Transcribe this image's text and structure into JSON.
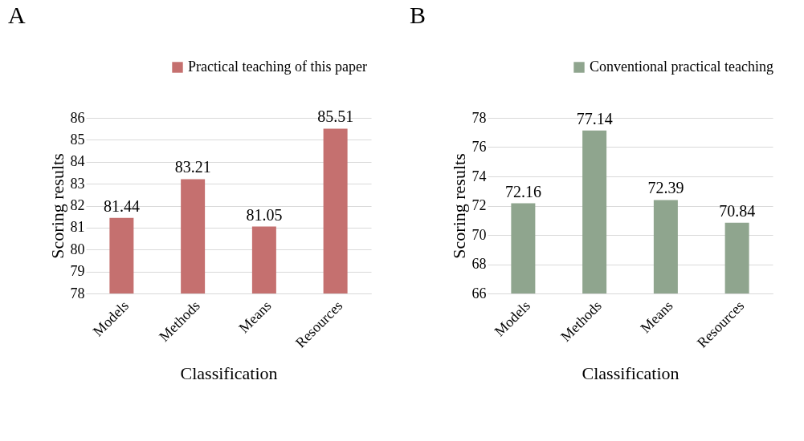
{
  "chart_data": [
    {
      "type": "bar",
      "title": "A",
      "xlabel": "Classification",
      "ylabel": "Scoring results",
      "categories": [
        "Models",
        "Methods",
        "Means",
        "Resources"
      ],
      "series": [
        {
          "name": "Practical teaching of this paper",
          "color": "#c5706f",
          "values": [
            81.44,
            83.21,
            81.05,
            85.51
          ]
        }
      ],
      "ylim": [
        78,
        86
      ],
      "yticks": [
        78,
        79,
        80,
        81,
        82,
        83,
        84,
        85,
        86
      ],
      "grid": "y",
      "legend": "top right",
      "data_labels": true
    },
    {
      "type": "bar",
      "title": "B",
      "xlabel": "Classification",
      "ylabel": "Scoring results",
      "categories": [
        "Models",
        "Methods",
        "Means",
        "Resources"
      ],
      "series": [
        {
          "name": "Conventional practical teaching",
          "color": "#8fa58e",
          "values": [
            72.16,
            77.14,
            72.39,
            70.84
          ]
        }
      ],
      "ylim": [
        66,
        78
      ],
      "yticks": [
        66,
        68,
        70,
        72,
        74,
        76,
        78
      ],
      "grid": "y",
      "legend": "top right",
      "data_labels": true
    }
  ]
}
